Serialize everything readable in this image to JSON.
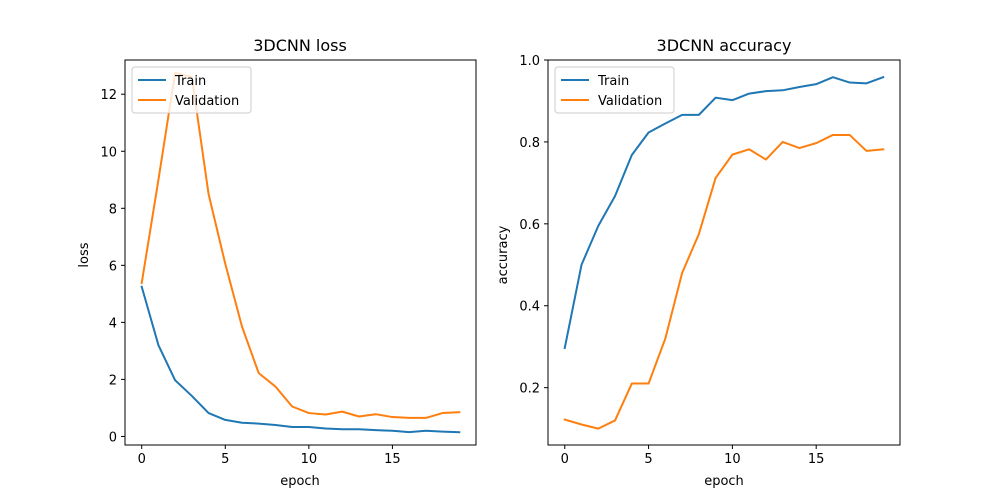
{
  "chart_data": [
    {
      "type": "line",
      "title": "3DCNN loss",
      "xlabel": "epoch",
      "ylabel": "loss",
      "x": [
        0,
        1,
        2,
        3,
        4,
        5,
        6,
        7,
        8,
        9,
        10,
        11,
        12,
        13,
        14,
        15,
        16,
        17,
        18,
        19
      ],
      "xlim": [
        -1,
        20
      ],
      "ylim": [
        -0.3,
        13.2
      ],
      "xticks": [
        0,
        5,
        10,
        15
      ],
      "yticks": [
        0,
        2,
        4,
        6,
        8,
        10,
        12
      ],
      "grid": false,
      "legend_position": "top-left",
      "series": [
        {
          "name": "Train",
          "color": "#1f77b4",
          "values": [
            5.25,
            3.2,
            1.97,
            1.42,
            0.82,
            0.58,
            0.48,
            0.45,
            0.4,
            0.33,
            0.33,
            0.28,
            0.25,
            0.25,
            0.22,
            0.2,
            0.15,
            0.2,
            0.17,
            0.15
          ]
        },
        {
          "name": "Validation",
          "color": "#ff7f0e",
          "values": [
            5.38,
            9.0,
            12.75,
            12.6,
            8.5,
            6.05,
            3.85,
            2.22,
            1.75,
            1.05,
            0.82,
            0.77,
            0.87,
            0.7,
            0.78,
            0.68,
            0.65,
            0.65,
            0.82,
            0.85
          ]
        }
      ]
    },
    {
      "type": "line",
      "title": "3DCNN accuracy",
      "xlabel": "epoch",
      "ylabel": "accuracy",
      "x": [
        0,
        1,
        2,
        3,
        4,
        5,
        6,
        7,
        8,
        9,
        10,
        11,
        12,
        13,
        14,
        15,
        16,
        17,
        18,
        19
      ],
      "xlim": [
        -1,
        20
      ],
      "ylim": [
        0.06,
        1.0
      ],
      "xticks": [
        0,
        5,
        10,
        15
      ],
      "yticks": [
        0.2,
        0.4,
        0.6,
        0.8,
        1.0
      ],
      "ytick_labels": [
        "0.2",
        "0.4",
        "0.6",
        "0.8",
        "1.0"
      ],
      "grid": false,
      "legend_position": "top-left",
      "series": [
        {
          "name": "Train",
          "color": "#1f77b4",
          "values": [
            0.297,
            0.5,
            0.595,
            0.668,
            0.768,
            0.823,
            0.845,
            0.866,
            0.866,
            0.908,
            0.902,
            0.918,
            0.924,
            0.926,
            0.934,
            0.941,
            0.958,
            0.945,
            0.943,
            0.958
          ]
        },
        {
          "name": "Validation",
          "color": "#ff7f0e",
          "values": [
            0.122,
            0.11,
            0.1,
            0.12,
            0.21,
            0.21,
            0.32,
            0.48,
            0.575,
            0.712,
            0.769,
            0.782,
            0.757,
            0.8,
            0.785,
            0.797,
            0.817,
            0.817,
            0.778,
            0.782
          ]
        }
      ]
    }
  ]
}
